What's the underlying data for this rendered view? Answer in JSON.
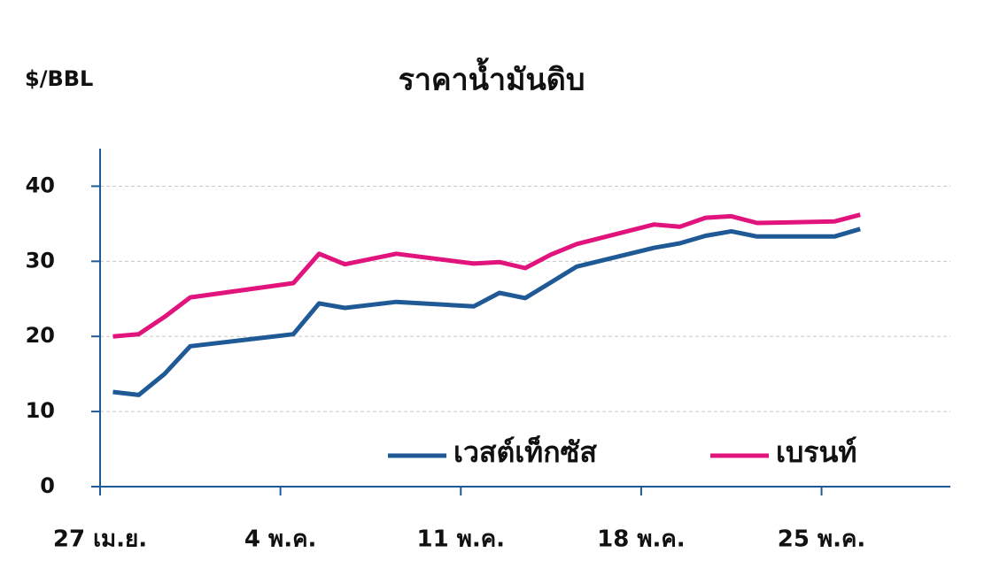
{
  "chart_data": {
    "type": "line",
    "title": "ราคาน้ำมันดิบ",
    "y_label": "$/BBL",
    "x": [
      0.5,
      1.5,
      2.5,
      3.5,
      7.5,
      8.5,
      9.5,
      11.5,
      14.5,
      15.5,
      16.5,
      17.5,
      18.5,
      21.5,
      22.5,
      23.5,
      24.5,
      25.5,
      28.5,
      29.5
    ],
    "xlim": [
      0,
      33
    ],
    "xticks": [
      {
        "value": 0,
        "label": "27 เม.ย."
      },
      {
        "value": 7,
        "label": "4 พ.ค."
      },
      {
        "value": 14,
        "label": "11 พ.ค."
      },
      {
        "value": 21,
        "label": "18 พ.ค."
      },
      {
        "value": 28,
        "label": "25 พ.ค."
      }
    ],
    "ylim": [
      0,
      45
    ],
    "yticks": [
      0,
      10,
      20,
      30,
      40
    ],
    "grid": true,
    "legend": "lower right",
    "series": [
      {
        "name": "เวสต์เท็กซัส",
        "color": "#1f5a96",
        "values": [
          12.6,
          12.2,
          15.0,
          18.7,
          20.3,
          24.4,
          23.8,
          24.6,
          24.0,
          25.8,
          25.1,
          27.2,
          29.3,
          31.8,
          32.4,
          33.4,
          34.0,
          33.3,
          33.3,
          34.3
        ]
      },
      {
        "name": "เบรนท์",
        "color": "#e0147c",
        "values": [
          20.0,
          20.3,
          22.6,
          25.2,
          27.1,
          31.0,
          29.6,
          31.0,
          29.7,
          29.9,
          29.1,
          30.9,
          32.3,
          34.9,
          34.6,
          35.8,
          36.0,
          35.1,
          35.3,
          36.2
        ]
      }
    ]
  }
}
